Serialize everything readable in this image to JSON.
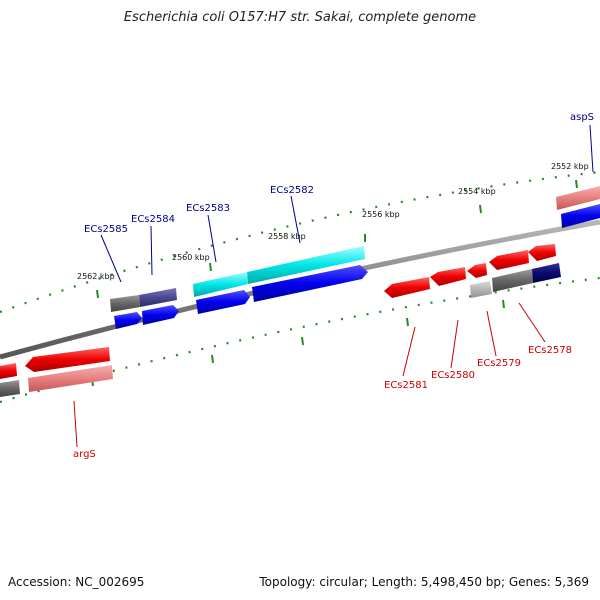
{
  "title": "Escherichia coli O157:H7 str. Sakai, complete genome",
  "footer": {
    "accession": "Accession: NC_002695",
    "summary": "Topology: circular; Length: 5,498,450 bp; Genes: 5,369"
  },
  "colors": {
    "backbone": "#808080",
    "tick": "#228b22",
    "forward_label": "#00008b",
    "reverse_label": "#cc0000"
  },
  "ticks": [
    "2552 kbp",
    "2554 kbp",
    "2556 kbp",
    "2558 kbp",
    "2560 kbp",
    "2562 kbp"
  ],
  "genes": {
    "upper": [
      "aspS",
      "ECs2582",
      "ECs2583",
      "ECs2584",
      "ECs2585"
    ],
    "lower": [
      "argS",
      "ECs2581",
      "ECs2580",
      "ECs2579",
      "ECs2578"
    ]
  }
}
